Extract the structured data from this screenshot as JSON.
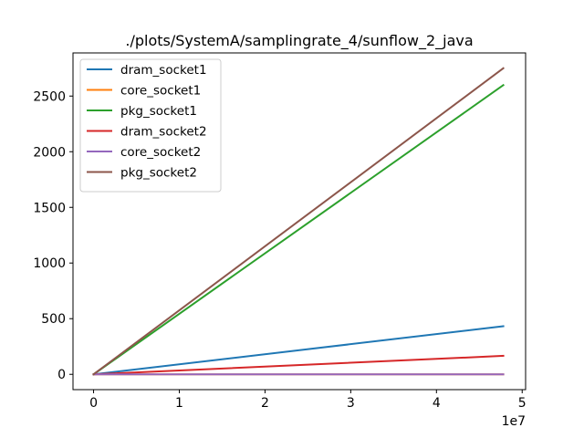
{
  "chart_data": {
    "type": "line",
    "title": "./plots/SystemA/samplingrate_4/sunflow_2_java",
    "xlabel": "",
    "ylabel": "",
    "x_offset_text": "1e7",
    "xlim": [
      -2400000,
      50400000
    ],
    "ylim": [
      -137.5,
      2887.5
    ],
    "xticks": [
      0,
      10000000,
      20000000,
      30000000,
      40000000,
      50000000
    ],
    "xtick_labels": [
      "0",
      "1",
      "2",
      "3",
      "4",
      "5"
    ],
    "yticks": [
      0,
      500,
      1000,
      1500,
      2000,
      2500
    ],
    "ytick_labels": [
      "0",
      "500",
      "1000",
      "1500",
      "2000",
      "2500"
    ],
    "grid": false,
    "legend_position": "upper-left",
    "series": [
      {
        "name": "dram_socket1",
        "color": "#1f77b4",
        "x": [
          0,
          47800000
        ],
        "y": [
          0,
          432
        ]
      },
      {
        "name": "core_socket1",
        "color": "#ff7f0e",
        "x": [
          0,
          47800000
        ],
        "y": [
          0,
          0
        ]
      },
      {
        "name": "pkg_socket1",
        "color": "#2ca02c",
        "x": [
          0,
          47800000
        ],
        "y": [
          0,
          2598
        ]
      },
      {
        "name": "dram_socket2",
        "color": "#d62728",
        "x": [
          0,
          47800000
        ],
        "y": [
          0,
          166
        ]
      },
      {
        "name": "core_socket2",
        "color": "#9467bd",
        "x": [
          0,
          47800000
        ],
        "y": [
          0,
          0
        ]
      },
      {
        "name": "pkg_socket2",
        "color": "#8c564b",
        "x": [
          0,
          47800000
        ],
        "y": [
          0,
          2750
        ]
      }
    ]
  }
}
